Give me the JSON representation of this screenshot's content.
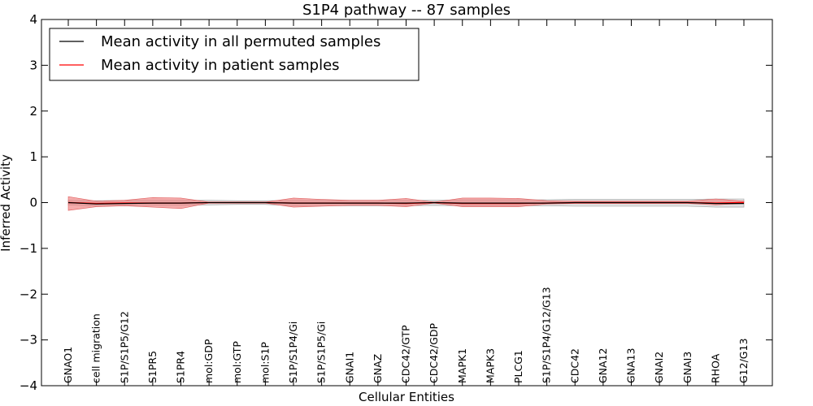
{
  "chart_data": {
    "type": "line",
    "title": "S1P4 pathway -- 87 samples",
    "xlabel": "Cellular Entities",
    "ylabel": "Inferred Activity",
    "ylim": [
      -4,
      4
    ],
    "yticks": [
      4,
      3,
      2,
      1,
      0,
      -1,
      -2,
      -3,
      -4
    ],
    "ytick_labels": [
      "4",
      "3",
      "2",
      "1",
      "0",
      "−1",
      "−2",
      "−3",
      "−4"
    ],
    "legend_position": "top-left",
    "categories": [
      "GNAO1",
      "cell migration",
      "S1P/S1P5/G12",
      "S1PR5",
      "S1PR4",
      "mol:GDP",
      "mol:GTP",
      "mol:S1P",
      "S1P/S1P4/Gi",
      "S1P/S1P5/Gi",
      "GNAI1",
      "GNAZ",
      "CDC42/GTP",
      "CDC42/GDP",
      "MAPK1",
      "MAPK3",
      "PLCG1",
      "S1P/S1P4/G12/G13",
      "CDC42",
      "GNA12",
      "GNA13",
      "GNAI2",
      "GNAI3",
      "RHOA",
      "G12/G13"
    ],
    "series": [
      {
        "name": "Mean activity in all permuted samples",
        "color": "#000000",
        "band_color": "#c8c8c8",
        "values": [
          0.0,
          -0.03,
          -0.02,
          -0.01,
          -0.01,
          0.0,
          0.0,
          0.0,
          -0.01,
          -0.01,
          -0.01,
          -0.01,
          -0.01,
          0.0,
          -0.01,
          -0.01,
          -0.01,
          -0.01,
          0.0,
          0.0,
          0.0,
          0.0,
          0.0,
          -0.02,
          -0.02
        ],
        "band_low": [
          -0.05,
          -0.08,
          -0.07,
          -0.06,
          -0.06,
          -0.05,
          -0.04,
          -0.04,
          -0.07,
          -0.07,
          -0.07,
          -0.07,
          -0.07,
          -0.06,
          -0.07,
          -0.07,
          -0.07,
          -0.07,
          -0.08,
          -0.08,
          -0.08,
          -0.08,
          -0.08,
          -0.1,
          -0.1
        ],
        "band_high": [
          0.05,
          0.04,
          0.05,
          0.05,
          0.05,
          0.05,
          0.04,
          0.04,
          0.05,
          0.05,
          0.05,
          0.05,
          0.05,
          0.05,
          0.06,
          0.06,
          0.06,
          0.06,
          0.07,
          0.07,
          0.07,
          0.07,
          0.07,
          0.08,
          0.08
        ]
      },
      {
        "name": "Mean activity in patient samples",
        "color": "#ff0000",
        "band_color": "#f08080",
        "values": [
          0.0,
          -0.02,
          -0.01,
          -0.01,
          -0.01,
          0.0,
          0.0,
          0.0,
          -0.01,
          -0.01,
          -0.01,
          -0.01,
          -0.02,
          0.0,
          -0.02,
          -0.02,
          -0.02,
          -0.01,
          0.0,
          0.0,
          0.0,
          0.0,
          0.0,
          -0.01,
          0.0
        ],
        "band_low": [
          -0.17,
          -0.09,
          -0.07,
          -0.1,
          -0.13,
          -0.01,
          -0.01,
          -0.01,
          -0.1,
          -0.08,
          -0.06,
          -0.06,
          -0.09,
          -0.01,
          -0.09,
          -0.09,
          -0.09,
          -0.03,
          -0.02,
          -0.02,
          -0.02,
          -0.02,
          -0.02,
          -0.05,
          -0.02
        ],
        "band_high": [
          0.13,
          0.03,
          0.05,
          0.11,
          0.1,
          0.01,
          0.01,
          0.01,
          0.1,
          0.07,
          0.05,
          0.05,
          0.09,
          0.01,
          0.1,
          0.1,
          0.09,
          0.04,
          0.03,
          0.03,
          0.03,
          0.03,
          0.03,
          0.08,
          0.03
        ]
      }
    ]
  }
}
